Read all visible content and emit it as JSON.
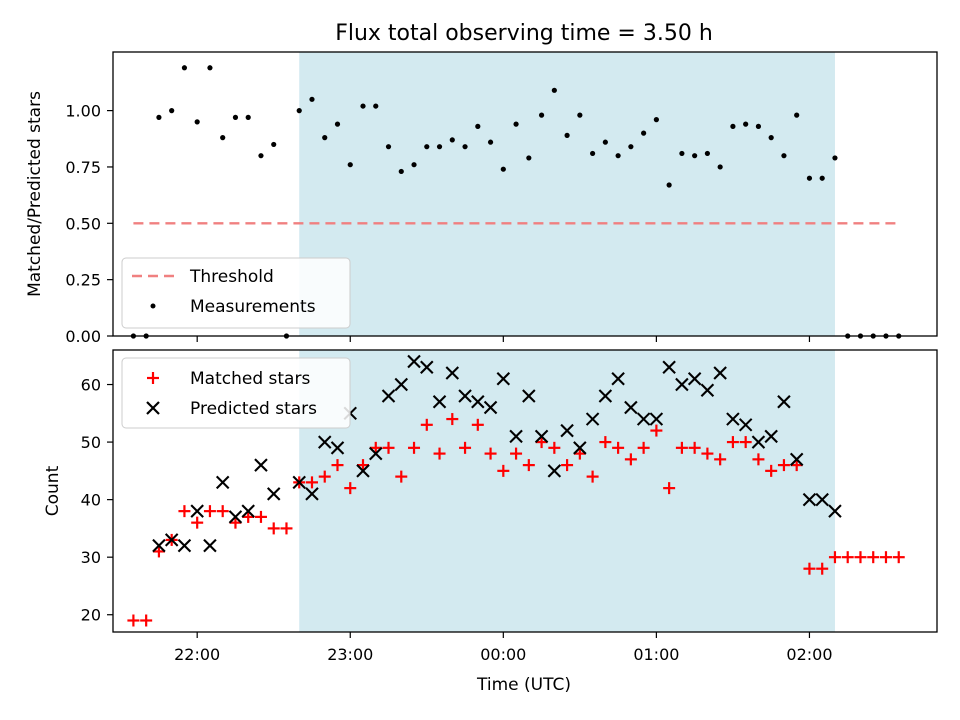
{
  "title": "Flux total observing time = 3.50 h",
  "chart_data": [
    {
      "type": "scatter",
      "ylabel": "Matched/Predicted stars",
      "ylim": [
        0,
        1.26
      ],
      "yticks": [
        "0.00",
        "0.25",
        "0.50",
        "0.75",
        "1.00"
      ],
      "xlim": [
        "21:27",
        "02:50"
      ],
      "highlight_span": [
        "22:40",
        "02:10"
      ],
      "highlight_color": "#d3eaf0",
      "threshold": {
        "label": "Threshold",
        "value": 0.5,
        "x_from": "21:35",
        "x_to": "02:35",
        "color": "#f08080"
      },
      "legend": {
        "position": "lower-left",
        "entries": [
          {
            "label": "Threshold"
          },
          {
            "label": "Measurements"
          }
        ]
      },
      "series": [
        {
          "name": "Measurements",
          "marker": "dot",
          "color": "#000000",
          "x": [
            "21:35",
            "21:40",
            "21:45",
            "21:50",
            "21:55",
            "22:00",
            "22:05",
            "22:10",
            "22:15",
            "22:20",
            "22:25",
            "22:30",
            "22:35",
            "22:40",
            "22:45",
            "22:50",
            "22:55",
            "23:00",
            "23:05",
            "23:10",
            "23:15",
            "23:20",
            "23:25",
            "23:30",
            "23:35",
            "23:40",
            "23:45",
            "23:50",
            "23:55",
            "00:00",
            "00:05",
            "00:10",
            "00:15",
            "00:20",
            "00:25",
            "00:30",
            "00:35",
            "00:40",
            "00:45",
            "00:50",
            "00:55",
            "01:00",
            "01:05",
            "01:10",
            "01:15",
            "01:20",
            "01:25",
            "01:30",
            "01:35",
            "01:40",
            "01:45",
            "01:50",
            "01:55",
            "02:00",
            "02:05",
            "02:10",
            "02:15",
            "02:20",
            "02:25",
            "02:30",
            "02:35"
          ],
          "y": [
            0,
            0,
            0.97,
            1.0,
            1.19,
            0.95,
            1.19,
            0.88,
            0.97,
            0.97,
            0.8,
            0.85,
            0,
            1.0,
            1.05,
            0.88,
            0.94,
            0.76,
            1.02,
            1.02,
            0.84,
            0.73,
            0.76,
            0.84,
            0.84,
            0.87,
            0.84,
            0.93,
            0.86,
            0.74,
            0.94,
            0.79,
            0.98,
            1.09,
            0.89,
            0.98,
            0.81,
            0.86,
            0.8,
            0.84,
            0.9,
            0.96,
            0.67,
            0.81,
            0.8,
            0.81,
            0.75,
            0.93,
            0.94,
            0.93,
            0.88,
            0.8,
            0.98,
            0.7,
            0.7,
            0.79,
            0,
            0,
            0,
            0,
            0
          ]
        }
      ]
    },
    {
      "type": "scatter",
      "xlabel": "Time (UTC)",
      "ylabel": "Count",
      "ylim": [
        17,
        66
      ],
      "yticks": [
        "20",
        "30",
        "40",
        "50",
        "60"
      ],
      "xticks": [
        "22:00",
        "23:00",
        "00:00",
        "01:00",
        "02:00"
      ],
      "xlim": [
        "21:27",
        "02:50"
      ],
      "highlight_span": [
        "22:40",
        "02:10"
      ],
      "highlight_color": "#d3eaf0",
      "legend": {
        "position": "top-left",
        "entries": [
          {
            "label": "Matched stars"
          },
          {
            "label": "Predicted stars"
          }
        ]
      },
      "series": [
        {
          "name": "Matched stars",
          "marker": "plus",
          "color": "#ff0000",
          "x": [
            "21:35",
            "21:40",
            "21:45",
            "21:50",
            "21:55",
            "22:00",
            "22:05",
            "22:10",
            "22:15",
            "22:20",
            "22:25",
            "22:30",
            "22:35",
            "22:40",
            "22:45",
            "22:50",
            "22:55",
            "23:00",
            "23:05",
            "23:10",
            "23:15",
            "23:20",
            "23:25",
            "23:30",
            "23:35",
            "23:40",
            "23:45",
            "23:50",
            "23:55",
            "00:00",
            "00:05",
            "00:10",
            "00:15",
            "00:20",
            "00:25",
            "00:30",
            "00:35",
            "00:40",
            "00:45",
            "00:50",
            "00:55",
            "01:00",
            "01:05",
            "01:10",
            "01:15",
            "01:20",
            "01:25",
            "01:30",
            "01:35",
            "01:40",
            "01:45",
            "01:50",
            "01:55",
            "02:00",
            "02:05",
            "02:10",
            "02:15",
            "02:20",
            "02:25",
            "02:30",
            "02:35"
          ],
          "y": [
            19,
            19,
            31,
            33,
            38,
            36,
            38,
            38,
            36,
            37,
            37,
            35,
            35,
            43,
            43,
            44,
            46,
            42,
            46,
            49,
            49,
            44,
            49,
            53,
            48,
            54,
            49,
            53,
            48,
            45,
            48,
            46,
            50,
            49,
            46,
            48,
            44,
            50,
            49,
            47,
            49,
            52,
            42,
            49,
            49,
            48,
            47,
            50,
            50,
            47,
            45,
            46,
            46,
            28,
            28,
            30,
            30,
            30,
            30,
            30,
            30
          ]
        },
        {
          "name": "Predicted stars",
          "marker": "x",
          "color": "#000000",
          "x": [
            "21:45",
            "21:50",
            "21:55",
            "22:00",
            "22:05",
            "22:10",
            "22:15",
            "22:20",
            "22:25",
            "22:30",
            "22:40",
            "22:45",
            "22:50",
            "22:55",
            "23:00",
            "23:05",
            "23:10",
            "23:15",
            "23:20",
            "23:25",
            "23:30",
            "23:35",
            "23:40",
            "23:45",
            "23:50",
            "23:55",
            "00:00",
            "00:05",
            "00:10",
            "00:15",
            "00:20",
            "00:25",
            "00:30",
            "00:35",
            "00:40",
            "00:45",
            "00:50",
            "00:55",
            "01:00",
            "01:05",
            "01:10",
            "01:15",
            "01:20",
            "01:25",
            "01:30",
            "01:35",
            "01:40",
            "01:45",
            "01:50",
            "01:55",
            "02:00",
            "02:05",
            "02:10"
          ],
          "y": [
            32,
            33,
            32,
            38,
            32,
            43,
            37,
            38,
            46,
            41,
            43,
            41,
            50,
            49,
            55,
            45,
            48,
            58,
            60,
            64,
            63,
            57,
            62,
            58,
            57,
            56,
            61,
            51,
            58,
            51,
            45,
            52,
            49,
            54,
            58,
            61,
            56,
            54,
            54,
            63,
            60,
            61,
            59,
            62,
            54,
            53,
            50,
            51,
            57,
            47,
            40,
            40,
            38
          ]
        }
      ]
    }
  ]
}
